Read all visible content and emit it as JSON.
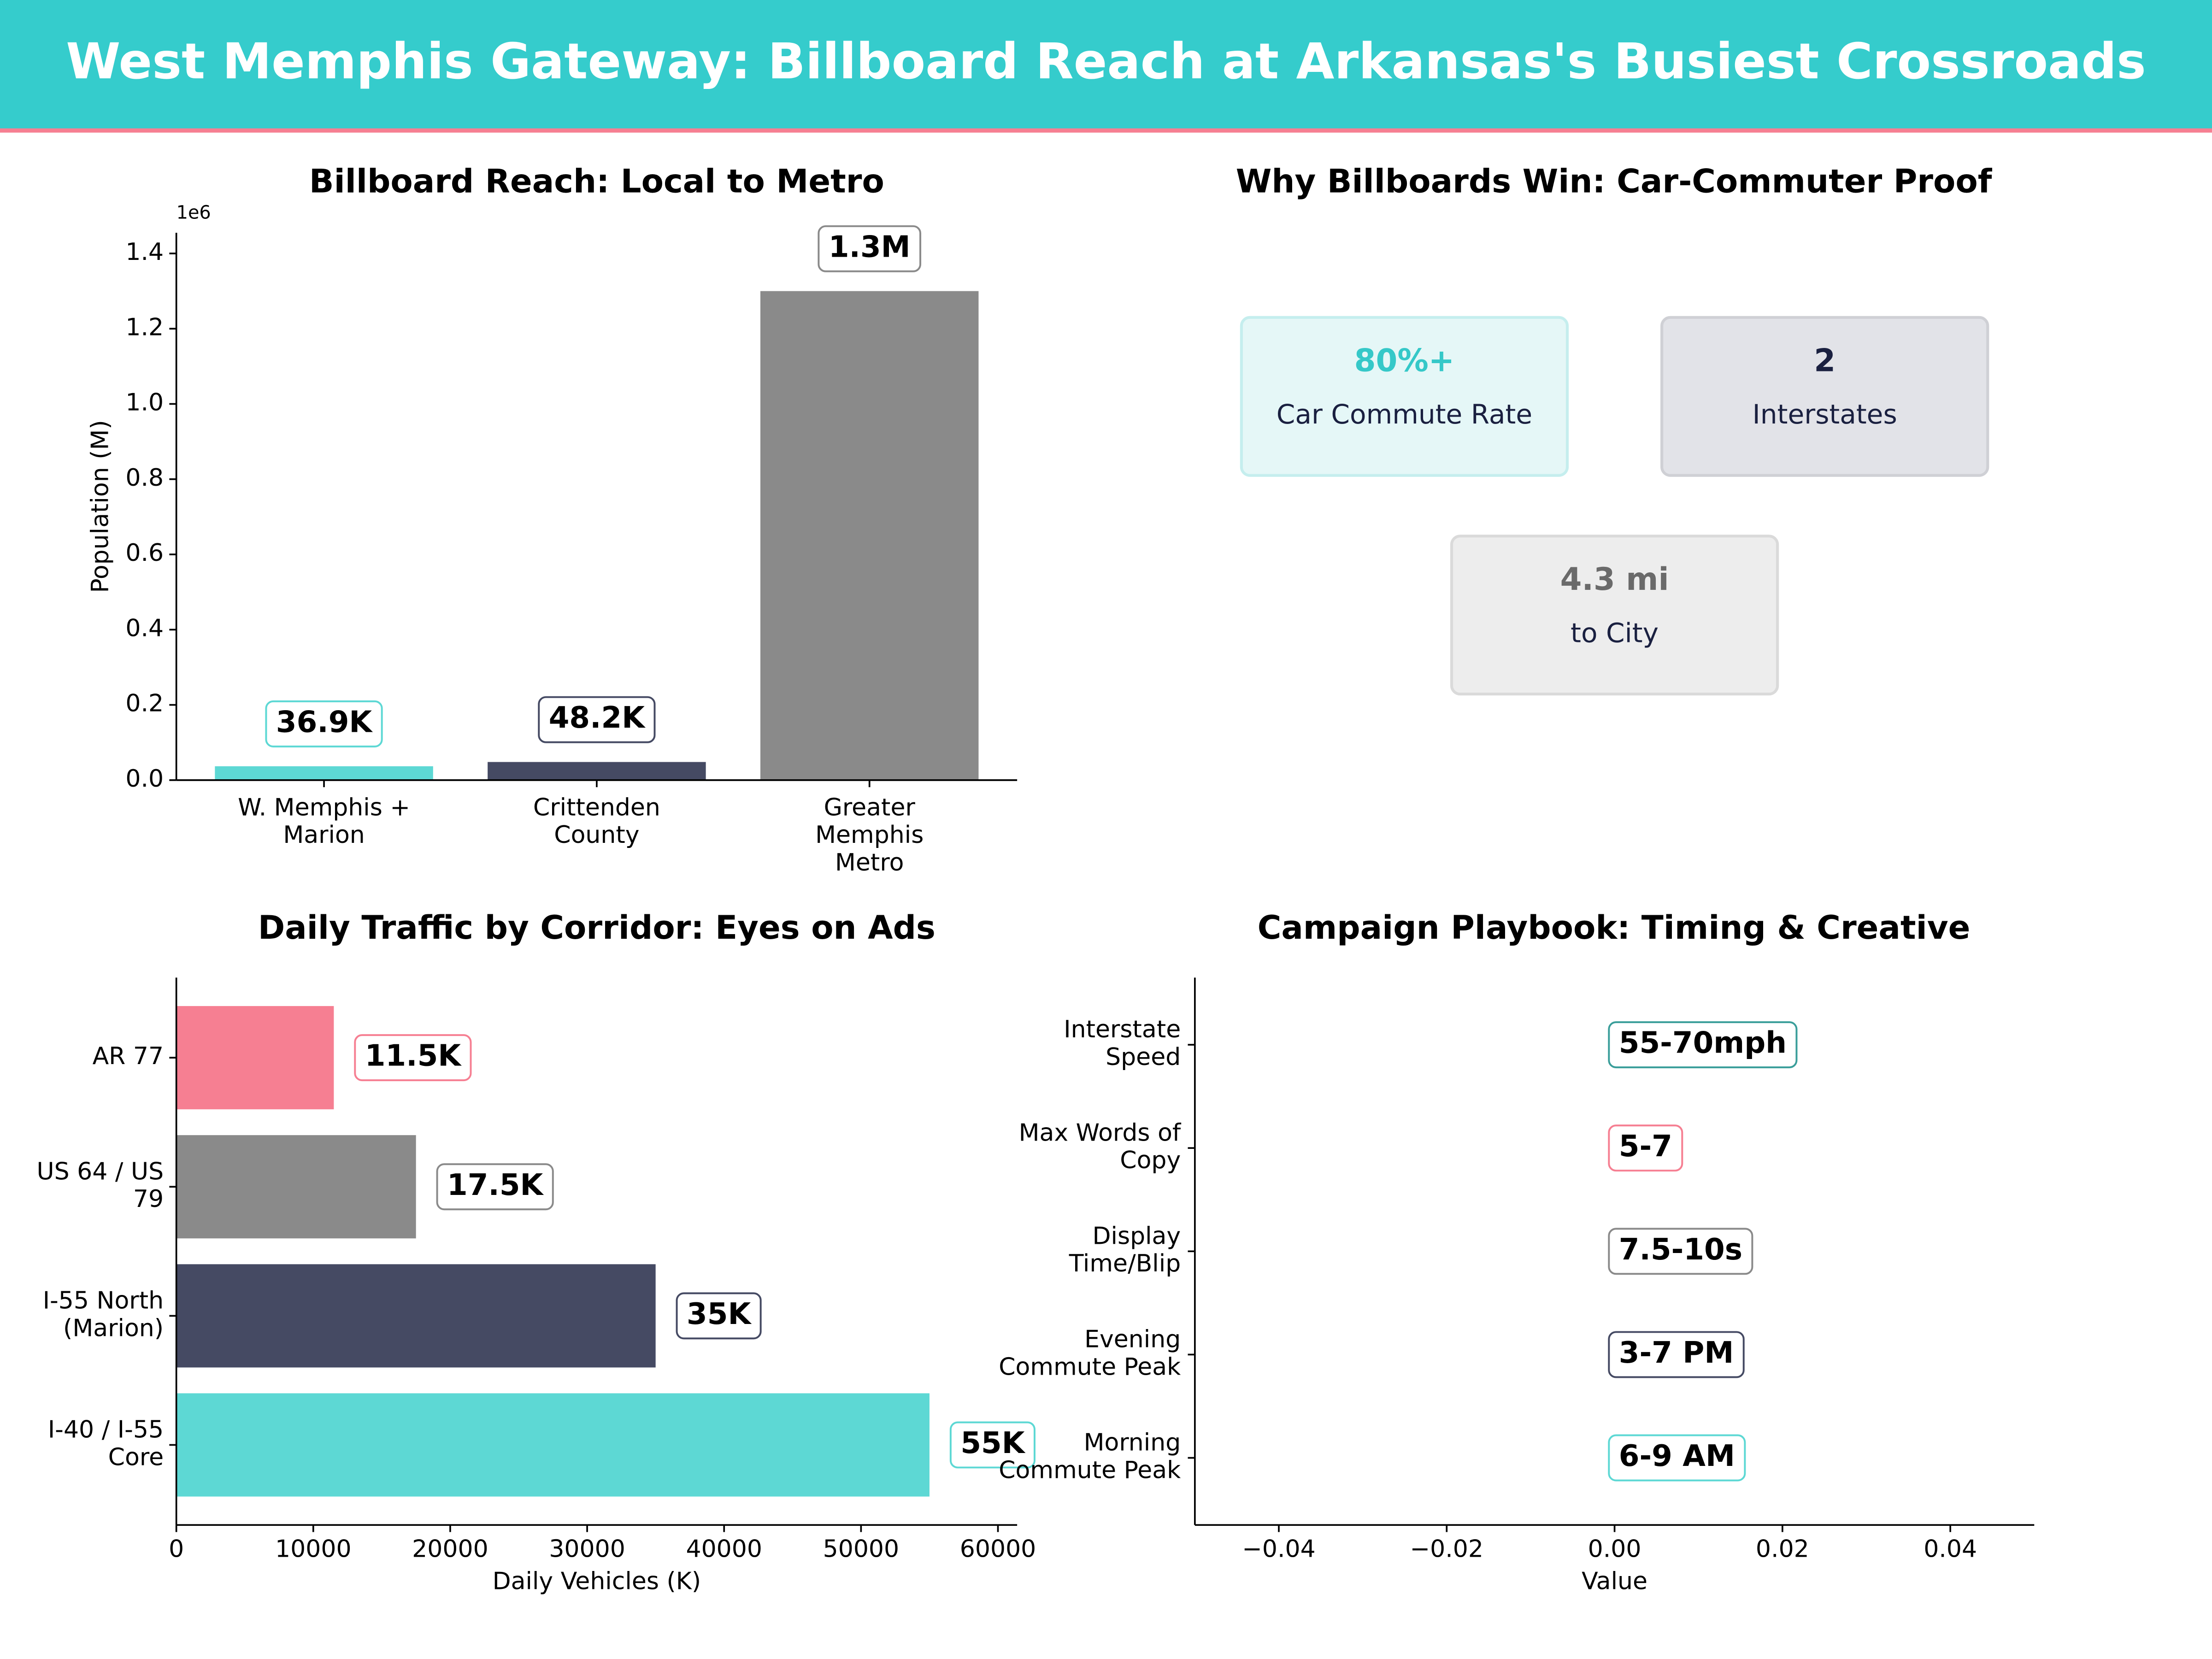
{
  "title": "West Memphis Gateway: Billboard Reach at Arkansas's Busiest Crossroads",
  "chart_data": [
    {
      "type": "bar",
      "title": "Billboard Reach: Local to Metro",
      "ylabel": "Population (M)",
      "y_offset_label": "1e6",
      "categories": [
        "W. Memphis +\nMarion",
        "Crittenden\nCounty",
        "Greater\nMemphis\nMetro"
      ],
      "values": [
        36900,
        48200,
        1300000
      ],
      "value_labels": [
        "36.9K",
        "48.2K",
        "1.3M"
      ],
      "colors": [
        "#5dd8d4",
        "#454a63",
        "#8a8a8a"
      ],
      "ylim": [
        0,
        1455000
      ],
      "yticks": [
        {
          "value": 0,
          "label": "0.0"
        },
        {
          "value": 200000,
          "label": "0.2"
        },
        {
          "value": 400000,
          "label": "0.4"
        },
        {
          "value": 600000,
          "label": "0.6"
        },
        {
          "value": 800000,
          "label": "0.8"
        },
        {
          "value": 1000000,
          "label": "1.0"
        },
        {
          "value": 1200000,
          "label": "1.2"
        },
        {
          "value": 1400000,
          "label": "1.4"
        }
      ]
    },
    {
      "type": "cards",
      "title": "Why Billboards Win: Car-Commuter Proof",
      "cards": [
        {
          "value": "80%+",
          "label": "Car Commute Rate",
          "color": "#35c8c8"
        },
        {
          "value": "2",
          "label": "Interstates",
          "color": "#1a2040"
        },
        {
          "value": "4.3 mi",
          "label": "to City",
          "color": "#6a6a6a"
        }
      ]
    },
    {
      "type": "barh",
      "title": "Daily Traffic by Corridor: Eyes on Ads",
      "xlabel": "Daily Vehicles (K)",
      "categories": [
        "I-40 / I-55\nCore",
        "I-55 North\n(Marion)",
        "US 64 / US\n79",
        "AR 77"
      ],
      "values": [
        55000,
        35000,
        17500,
        11500
      ],
      "value_labels": [
        "55K",
        "35K",
        "17.5K",
        "11.5K"
      ],
      "colors": [
        "#5dd8d4",
        "#454a63",
        "#8a8a8a",
        "#f67f92"
      ],
      "xlim": [
        0,
        61400
      ],
      "xticks": [
        0,
        10000,
        20000,
        30000,
        40000,
        50000,
        60000
      ]
    },
    {
      "type": "annotation",
      "title": "Campaign Playbook: Timing & Creative",
      "xlabel": "Value",
      "categories": [
        "Morning\nCommute Peak",
        "Evening\nCommute Peak",
        "Display\nTime/Blip",
        "Max Words of\nCopy",
        "Interstate\nSpeed"
      ],
      "values": [
        0,
        0,
        0,
        0,
        0
      ],
      "value_labels": [
        "6-9 AM",
        "3-7 PM",
        "7.5-10s",
        "5-7",
        "55-70mph"
      ],
      "colors": [
        "#5dd8d4",
        "#454a63",
        "#8a8a8a",
        "#f67f92",
        "#3a9e9a"
      ],
      "xlim": [
        -0.05,
        0.05
      ],
      "xticks": [
        {
          "value": -0.04,
          "label": "−0.04"
        },
        {
          "value": -0.02,
          "label": "−0.02"
        },
        {
          "value": 0,
          "label": "0.00"
        },
        {
          "value": 0.02,
          "label": "0.02"
        },
        {
          "value": 0.04,
          "label": "0.04"
        }
      ]
    }
  ]
}
